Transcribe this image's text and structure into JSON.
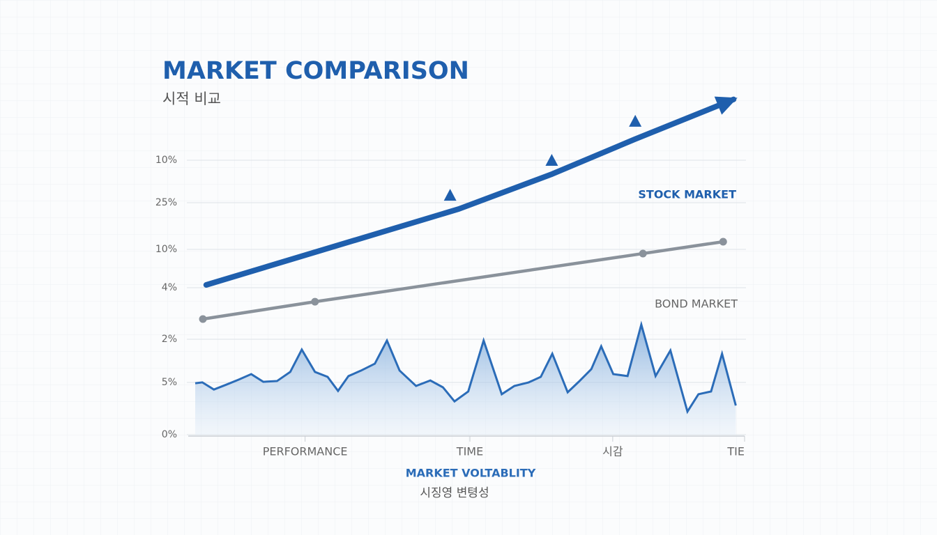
{
  "chart_data": {
    "type": "line",
    "title": "MARKET COMPARISON",
    "subtitle": "시적 비교",
    "y_axis_labels": [
      "10%",
      "25%",
      "10%",
      "4%",
      "2%",
      "5%",
      "0%"
    ],
    "xlim": [
      0,
      100
    ],
    "ylim": [
      0,
      125
    ],
    "xticks": [
      {
        "value": 20,
        "label": "PERFORMANCE"
      },
      {
        "value": 50,
        "label": "TIME"
      },
      {
        "value": 76,
        "label": "시감"
      },
      {
        "value": 100,
        "label": "TIE"
      }
    ],
    "grid": true,
    "series": [
      {
        "name": "STOCK MARKET",
        "color": "#1f5fad",
        "style": "arrow",
        "x": [
          2,
          48,
          65,
          80,
          98
        ],
        "values": [
          54.4,
          82,
          94.7,
          107.3,
          121.8
        ],
        "points": {
          "x": [
            46.4,
            64.9,
            80.1
          ],
          "values": [
            87,
            99.7,
            113.9
          ]
        }
      },
      {
        "name": "BOND MARKET",
        "color": "#8a929b",
        "style": "dots",
        "x": [
          1.4,
          21.8,
          81.5,
          96.1
        ],
        "values": [
          42,
          48.3,
          65.8,
          70.1
        ]
      },
      {
        "name": "MARKET VOLTABLITY",
        "subname": "시징영 변텽성",
        "color": "#2b6cb8",
        "style": "area",
        "x": [
          0,
          1.3,
          3.4,
          5.7,
          7.9,
          10.2,
          12.4,
          14.9,
          17.3,
          19.4,
          21.8,
          24.1,
          26,
          27.9,
          30.2,
          32.7,
          34.9,
          37.2,
          40.2,
          42.8,
          45.1,
          47.2,
          49.7,
          52.5,
          55.8,
          58.1,
          60.7,
          62.9,
          65,
          67.8,
          69.8,
          72.1,
          73.9,
          76.1,
          78.7,
          81.2,
          83.8,
          86.5,
          89.6,
          91.6,
          93.9,
          95.9,
          98.4
        ],
        "values": [
          18.7,
          19,
          16.4,
          18.2,
          20,
          22,
          19.2,
          19.5,
          22.8,
          30.9,
          22.8,
          21,
          15.9,
          21.3,
          23.3,
          25.8,
          34.2,
          23.3,
          17.7,
          19.7,
          17.2,
          12.1,
          15.7,
          34.2,
          14.7,
          17.7,
          19,
          21,
          29.4,
          15.4,
          19.2,
          23.8,
          32.1,
          22,
          21.3,
          40,
          21.3,
          30.6,
          8.4,
          14.7,
          15.7,
          29.4,
          10.6
        ]
      }
    ]
  }
}
